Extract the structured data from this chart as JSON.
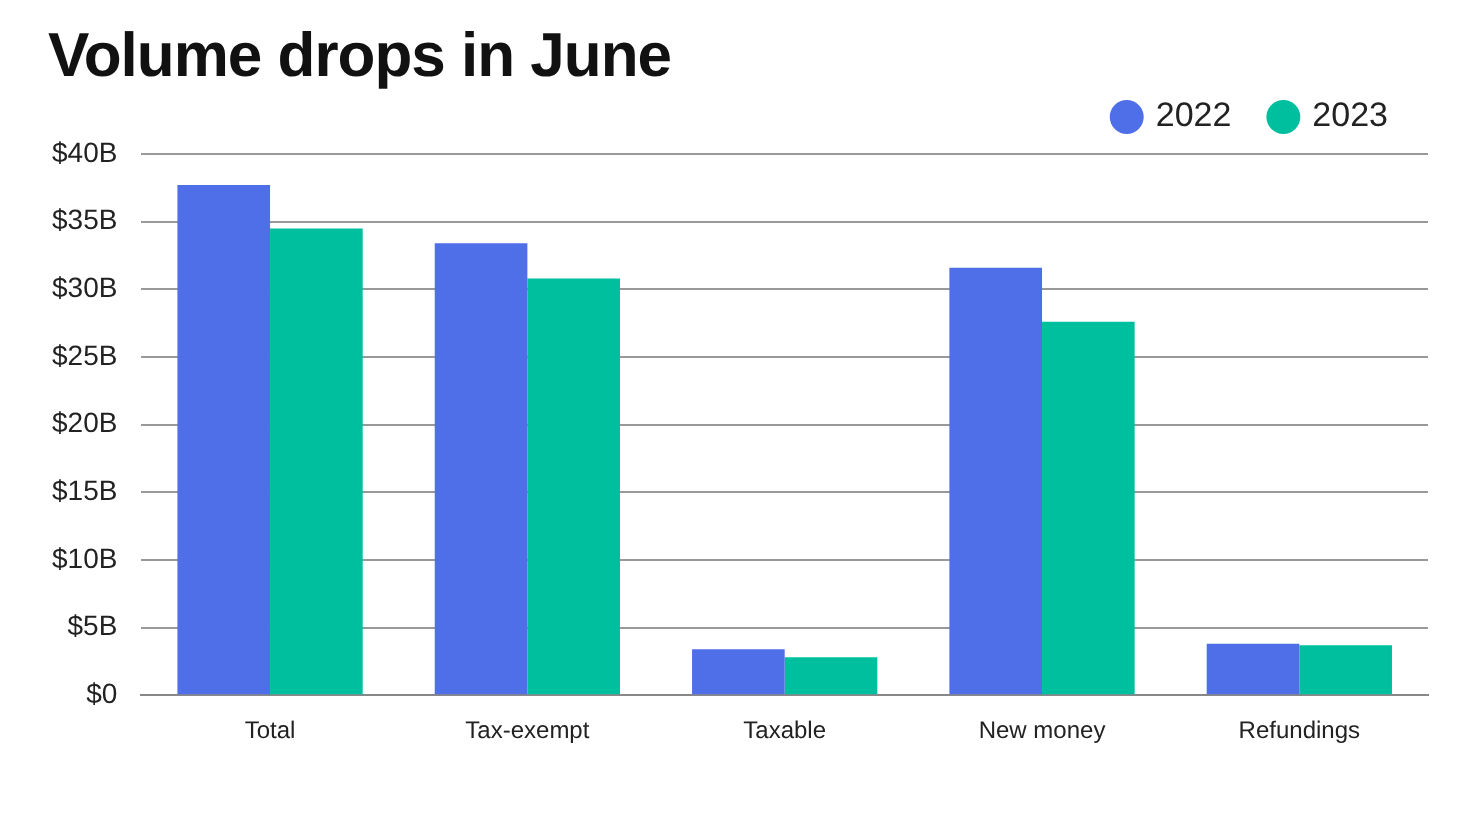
{
  "chart_data": {
    "type": "bar",
    "title": "Volume drops in June",
    "categories": [
      "Total",
      "Tax-exempt",
      "Taxable",
      "New money",
      "Refundings"
    ],
    "series": [
      {
        "name": "2022",
        "color": "#4f6fe8",
        "values": [
          37.7,
          33.4,
          3.4,
          31.6,
          3.8
        ]
      },
      {
        "name": "2023",
        "color": "#00bf9f",
        "values": [
          34.5,
          30.8,
          2.8,
          27.6,
          3.7
        ]
      }
    ],
    "ylim": [
      0,
      40
    ],
    "yticks": [
      {
        "value": 0,
        "label": "$0"
      },
      {
        "value": 5,
        "label": "$5B"
      },
      {
        "value": 10,
        "label": "$10B"
      },
      {
        "value": 15,
        "label": "$15B"
      },
      {
        "value": 20,
        "label": "$20B"
      },
      {
        "value": 25,
        "label": "$25B"
      },
      {
        "value": 30,
        "label": "$30B"
      },
      {
        "value": 35,
        "label": "$35B"
      },
      {
        "value": 40,
        "label": "$40B"
      }
    ],
    "grid": "y",
    "legend": "top right"
  }
}
